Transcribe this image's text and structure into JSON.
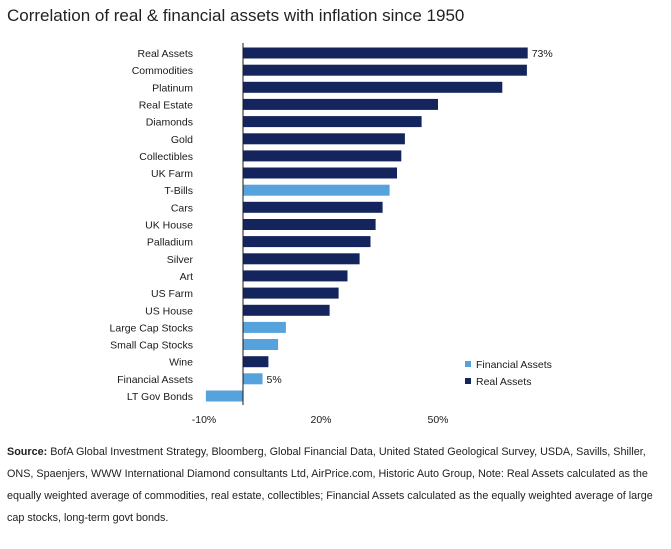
{
  "title": "Correlation of real & financial assets with inflation since 1950",
  "source": {
    "label": "Source:",
    "text": "BofA Global Investment Strategy, Bloomberg, Global Financial Data, United Stated Geological Survey, USDA, Savills, Shiller, ONS, Spaenjers, WWW International Diamond consultants Ltd, AirPrice.com, Historic Auto Group, Note: Real Assets calculated as the equally weighted average of commodities, real estate, collectibles; Financial Assets calculated as the equally weighted average of large cap stocks, long-term govt bonds."
  },
  "colors": {
    "real": "#13255c",
    "financial": "#55a2dc"
  },
  "chart_data": {
    "type": "bar",
    "orientation": "horizontal",
    "xlim": [
      -10,
      80
    ],
    "xticks": [
      -10,
      20,
      50
    ],
    "xtick_labels": [
      "-10%",
      "20%",
      "50%"
    ],
    "grid": false,
    "legend_position": "bottom-right",
    "legend": [
      {
        "name": "Financial Assets",
        "group": "financial"
      },
      {
        "name": "Real Assets",
        "group": "real"
      }
    ],
    "categories": [
      "Real Assets",
      "Commodities",
      "Platinum",
      "Real Estate",
      "Diamonds",
      "Gold",
      "Collectibles",
      "UK Farm",
      "T-Bills",
      "Cars",
      "UK House",
      "Palladium",
      "Silver",
      "Art",
      "US Farm",
      "US House",
      "Large Cap Stocks",
      "Small Cap Stocks",
      "Wine",
      "Financial Assets",
      "LT Gov Bonds"
    ],
    "values": [
      73,
      72.8,
      66.5,
      50,
      45.8,
      41.5,
      40.6,
      39.5,
      37.6,
      35.8,
      34,
      32.7,
      29.9,
      26.8,
      24.5,
      22.2,
      11,
      9,
      6.5,
      5,
      -9.5
    ],
    "groups": [
      "real",
      "real",
      "real",
      "real",
      "real",
      "real",
      "real",
      "real",
      "financial",
      "real",
      "real",
      "real",
      "real",
      "real",
      "real",
      "real",
      "financial",
      "financial",
      "real",
      "financial",
      "financial"
    ],
    "data_labels": [
      {
        "index": 0,
        "text": "73%"
      },
      {
        "index": 19,
        "text": "5%"
      }
    ]
  }
}
